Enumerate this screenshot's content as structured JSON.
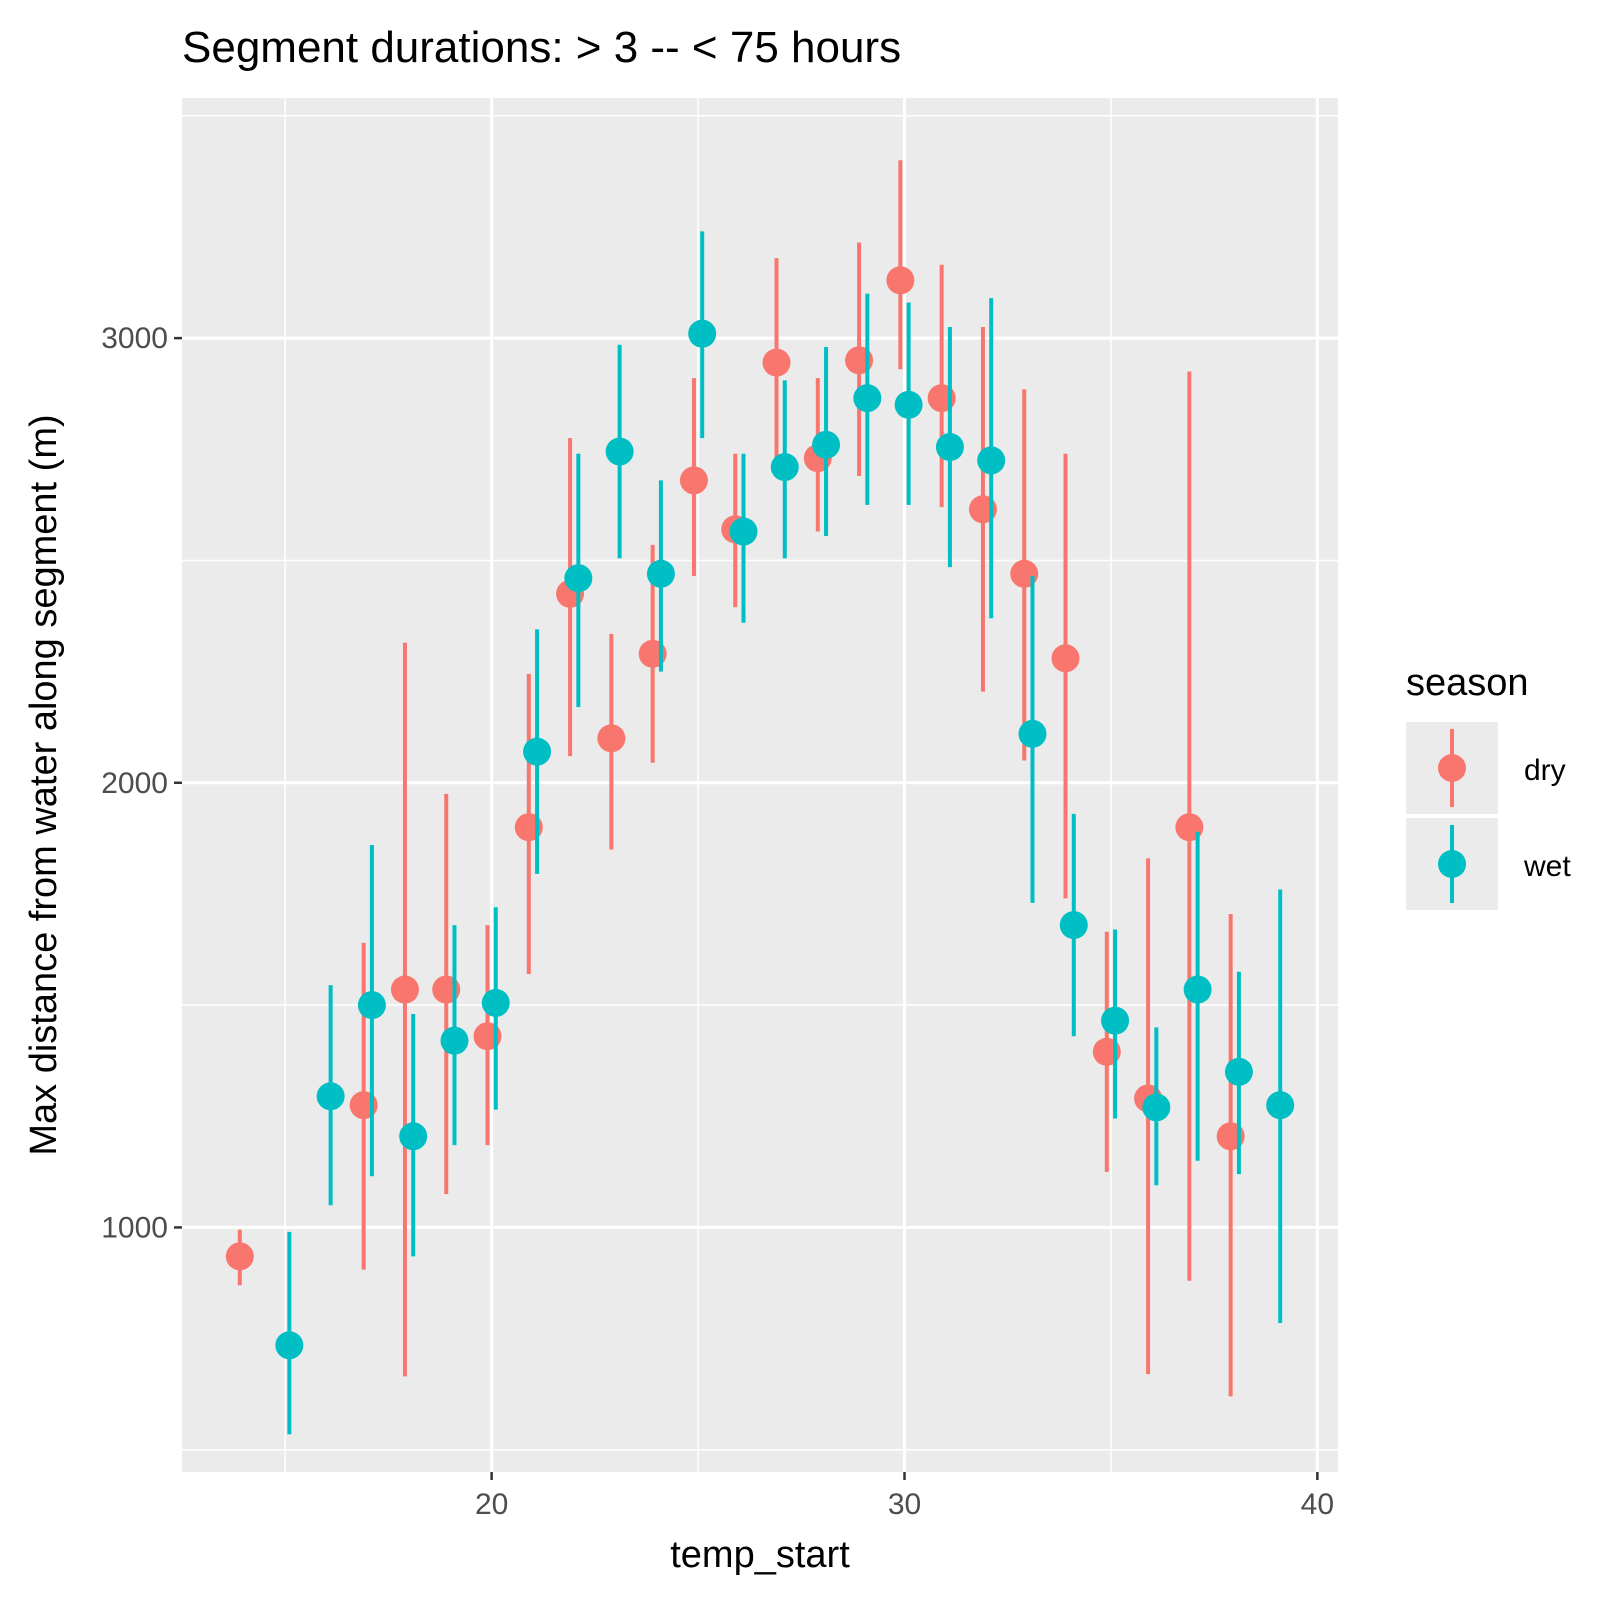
{
  "chart_data": {
    "type": "scatter",
    "subtype": "pointrange",
    "title": "Segment durations: > 3 -- < 75 hours",
    "xlabel": "temp_start",
    "ylabel": "Max distance from water along segment (m)",
    "xlim": [
      12.5,
      40.5
    ],
    "ylim": [
      450,
      3540
    ],
    "x_ticks": [
      20,
      30,
      40
    ],
    "y_ticks": [
      1000,
      2000,
      3000
    ],
    "x_ticks_minor": [
      15,
      25,
      35
    ],
    "y_ticks_minor": [
      500,
      1500,
      2500,
      3500
    ],
    "grid": true,
    "legend": {
      "title": "season",
      "position": "right",
      "entries": [
        "dry",
        "wet"
      ]
    },
    "colors": {
      "dry": "#F8766D",
      "wet": "#00BFC4",
      "panel": "#EBEBEB",
      "grid": "#FFFFFF"
    },
    "series": [
      {
        "name": "dry",
        "points": [
          {
            "x": 13.9,
            "y": 935,
            "lo": 870,
            "hi": 995
          },
          {
            "x": 16.9,
            "y": 1275,
            "lo": 905,
            "hi": 1640
          },
          {
            "x": 17.9,
            "y": 1535,
            "lo": 665,
            "hi": 2315
          },
          {
            "x": 18.9,
            "y": 1535,
            "lo": 1075,
            "hi": 1975
          },
          {
            "x": 19.9,
            "y": 1430,
            "lo": 1185,
            "hi": 1680
          },
          {
            "x": 20.9,
            "y": 1900,
            "lo": 1570,
            "hi": 2245
          },
          {
            "x": 21.9,
            "y": 2425,
            "lo": 2060,
            "hi": 2775
          },
          {
            "x": 22.9,
            "y": 2100,
            "lo": 1850,
            "hi": 2335
          },
          {
            "x": 23.9,
            "y": 2290,
            "lo": 2045,
            "hi": 2535
          },
          {
            "x": 24.9,
            "y": 2680,
            "lo": 2465,
            "hi": 2910
          },
          {
            "x": 25.9,
            "y": 2570,
            "lo": 2395,
            "hi": 2740
          },
          {
            "x": 26.9,
            "y": 2945,
            "lo": 2710,
            "hi": 3180
          },
          {
            "x": 27.9,
            "y": 2730,
            "lo": 2565,
            "hi": 2910
          },
          {
            "x": 28.9,
            "y": 2950,
            "lo": 2690,
            "hi": 3215
          },
          {
            "x": 29.9,
            "y": 3130,
            "lo": 2930,
            "hi": 3400
          },
          {
            "x": 30.9,
            "y": 2865,
            "lo": 2620,
            "hi": 3165
          },
          {
            "x": 31.9,
            "y": 2615,
            "lo": 2205,
            "hi": 3025
          },
          {
            "x": 32.9,
            "y": 2470,
            "lo": 2050,
            "hi": 2885
          },
          {
            "x": 33.9,
            "y": 2280,
            "lo": 1740,
            "hi": 2740
          },
          {
            "x": 34.9,
            "y": 1395,
            "lo": 1125,
            "hi": 1665
          },
          {
            "x": 35.9,
            "y": 1290,
            "lo": 670,
            "hi": 1830
          },
          {
            "x": 36.9,
            "y": 1900,
            "lo": 880,
            "hi": 2925
          },
          {
            "x": 37.9,
            "y": 1205,
            "lo": 620,
            "hi": 1705
          }
        ]
      },
      {
        "name": "wet",
        "points": [
          {
            "x": 15.1,
            "y": 735,
            "lo": 535,
            "hi": 990
          },
          {
            "x": 16.1,
            "y": 1295,
            "lo": 1050,
            "hi": 1545
          },
          {
            "x": 17.1,
            "y": 1500,
            "lo": 1115,
            "hi": 1860
          },
          {
            "x": 18.1,
            "y": 1205,
            "lo": 935,
            "hi": 1480
          },
          {
            "x": 19.1,
            "y": 1420,
            "lo": 1185,
            "hi": 1680
          },
          {
            "x": 20.1,
            "y": 1505,
            "lo": 1265,
            "hi": 1720
          },
          {
            "x": 21.1,
            "y": 2070,
            "lo": 1795,
            "hi": 2345
          },
          {
            "x": 22.1,
            "y": 2460,
            "lo": 2170,
            "hi": 2740
          },
          {
            "x": 23.1,
            "y": 2745,
            "lo": 2505,
            "hi": 2985
          },
          {
            "x": 24.1,
            "y": 2470,
            "lo": 2250,
            "hi": 2680
          },
          {
            "x": 25.1,
            "y": 3010,
            "lo": 2775,
            "hi": 3240
          },
          {
            "x": 26.1,
            "y": 2565,
            "lo": 2360,
            "hi": 2740
          },
          {
            "x": 27.1,
            "y": 2710,
            "lo": 2505,
            "hi": 2905
          },
          {
            "x": 28.1,
            "y": 2760,
            "lo": 2555,
            "hi": 2980
          },
          {
            "x": 29.1,
            "y": 2865,
            "lo": 2625,
            "hi": 3100
          },
          {
            "x": 30.1,
            "y": 2850,
            "lo": 2625,
            "hi": 3080
          },
          {
            "x": 31.1,
            "y": 2755,
            "lo": 2485,
            "hi": 3025
          },
          {
            "x": 32.1,
            "y": 2725,
            "lo": 2370,
            "hi": 3090
          },
          {
            "x": 33.1,
            "y": 2110,
            "lo": 1730,
            "hi": 2465
          },
          {
            "x": 34.1,
            "y": 1680,
            "lo": 1430,
            "hi": 1930
          },
          {
            "x": 35.1,
            "y": 1465,
            "lo": 1245,
            "hi": 1670
          },
          {
            "x": 36.1,
            "y": 1270,
            "lo": 1095,
            "hi": 1450
          },
          {
            "x": 37.1,
            "y": 1535,
            "lo": 1150,
            "hi": 1890
          },
          {
            "x": 38.1,
            "y": 1350,
            "lo": 1120,
            "hi": 1575
          },
          {
            "x": 39.1,
            "y": 1275,
            "lo": 785,
            "hi": 1760
          }
        ]
      }
    ]
  }
}
